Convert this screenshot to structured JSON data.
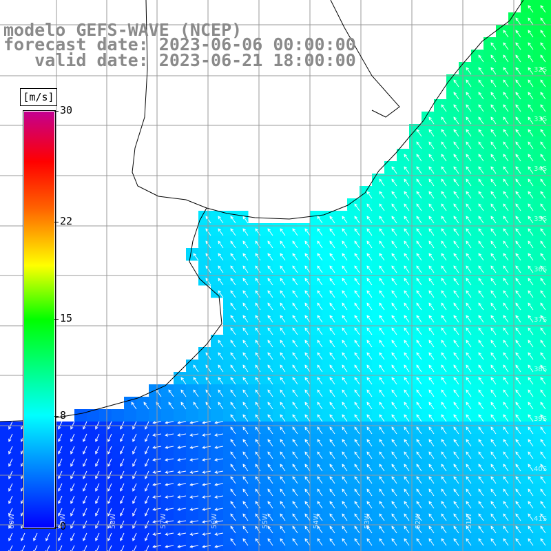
{
  "title": {
    "line1": "modelo GEFS-WAVE (NCEP)",
    "line2": "forecast date: 2023-06-06 00:00:00",
    "line3": "   valid date: 2023-06-21 18:00:00"
  },
  "colorbar": {
    "unit": "[m/s]",
    "ticks": [
      "30",
      "22",
      "15",
      "8",
      "0"
    ],
    "tick_values": [
      30,
      22,
      15,
      8,
      0
    ],
    "vmin": 0,
    "vmax": 30,
    "colors": [
      "#0000ff",
      "#00a8ff",
      "#00ffff",
      "#00ff00",
      "#ffff00",
      "#ff6000",
      "#ff0000",
      "#c40090"
    ]
  },
  "map": {
    "lat_labels": [
      "32S",
      "33S",
      "34S",
      "35S",
      "36S",
      "37S",
      "38S",
      "39S",
      "40S",
      "41S"
    ],
    "lon_labels": [
      "60W",
      "59W",
      "58W",
      "57W",
      "56W",
      "55W",
      "54W",
      "53W",
      "52W",
      "51W"
    ],
    "wind_direction": "SE → NW",
    "colors": {
      "land": "#ffffff",
      "grid": "#999999",
      "coast": "#000000",
      "arrow": "#ffffff"
    }
  }
}
